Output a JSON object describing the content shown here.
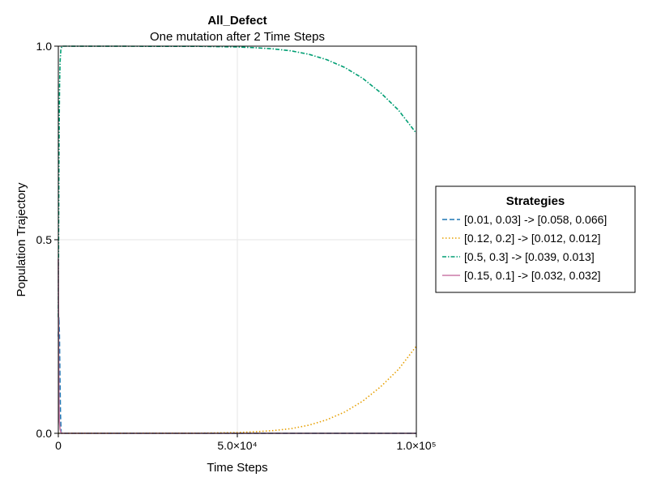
{
  "chart_data": {
    "type": "line",
    "title": "All_Defect",
    "subtitle": "One mutation after 2 Time Steps",
    "xlabel": "Time Steps",
    "ylabel": "Population Trajectory",
    "xlim": [
      0,
      100000
    ],
    "ylim": [
      0,
      1
    ],
    "grid": true,
    "legend_placement": "right",
    "legend_title": "Strategies",
    "x_ticks": [
      {
        "value": 0,
        "label": "0"
      },
      {
        "value": 50000,
        "label": "5.0×10⁴"
      },
      {
        "value": 100000,
        "label": "1.0×10⁵"
      }
    ],
    "y_ticks": [
      {
        "value": 0,
        "label": "0.0"
      },
      {
        "value": 0.5,
        "label": "0.5"
      },
      {
        "value": 1,
        "label": "1.0"
      }
    ],
    "series": [
      {
        "name": "[0.01, 0.03] -> [0.058, 0.066]",
        "color": "#1f77b4",
        "dash": "6,3",
        "points": [
          [
            0,
            0.25
          ],
          [
            150,
            0.3
          ],
          [
            300,
            0.26
          ],
          [
            450,
            0.15
          ],
          [
            600,
            0.05
          ],
          [
            800,
            0.0
          ],
          [
            100000,
            0.0
          ]
        ]
      },
      {
        "name": "[0.12, 0.2] -> [0.012, 0.012]",
        "color": "#e69f00",
        "dash": "1.5,2.5",
        "points": [
          [
            0,
            0.0
          ],
          [
            40000,
            0.0005
          ],
          [
            50000,
            0.002
          ],
          [
            55000,
            0.004
          ],
          [
            60000,
            0.007
          ],
          [
            65000,
            0.012
          ],
          [
            70000,
            0.021
          ],
          [
            75000,
            0.035
          ],
          [
            80000,
            0.055
          ],
          [
            85000,
            0.083
          ],
          [
            90000,
            0.12
          ],
          [
            95000,
            0.165
          ],
          [
            100000,
            0.225
          ]
        ]
      },
      {
        "name": "[0.5, 0.3] -> [0.039, 0.013]",
        "color": "#009e73",
        "dash": "5,2,1.5,2",
        "points": [
          [
            0,
            0.3
          ],
          [
            100,
            0.55
          ],
          [
            200,
            0.75
          ],
          [
            350,
            0.9
          ],
          [
            500,
            0.96
          ],
          [
            700,
            0.99
          ],
          [
            1000,
            1.0
          ],
          [
            40000,
            0.9995
          ],
          [
            50000,
            0.998
          ],
          [
            55000,
            0.996
          ],
          [
            60000,
            0.993
          ],
          [
            65000,
            0.988
          ],
          [
            70000,
            0.979
          ],
          [
            75000,
            0.965
          ],
          [
            80000,
            0.945
          ],
          [
            85000,
            0.917
          ],
          [
            90000,
            0.88
          ],
          [
            95000,
            0.835
          ],
          [
            100000,
            0.775
          ]
        ]
      },
      {
        "name": "[0.15, 0.1] -> [0.032, 0.032]",
        "color": "#cc79a7",
        "dash": "",
        "points": [
          [
            0,
            0.45
          ],
          [
            100,
            0.2
          ],
          [
            200,
            0.08
          ],
          [
            300,
            0.03
          ],
          [
            500,
            0.01
          ],
          [
            800,
            0.0
          ],
          [
            100000,
            0.0
          ]
        ]
      }
    ]
  }
}
